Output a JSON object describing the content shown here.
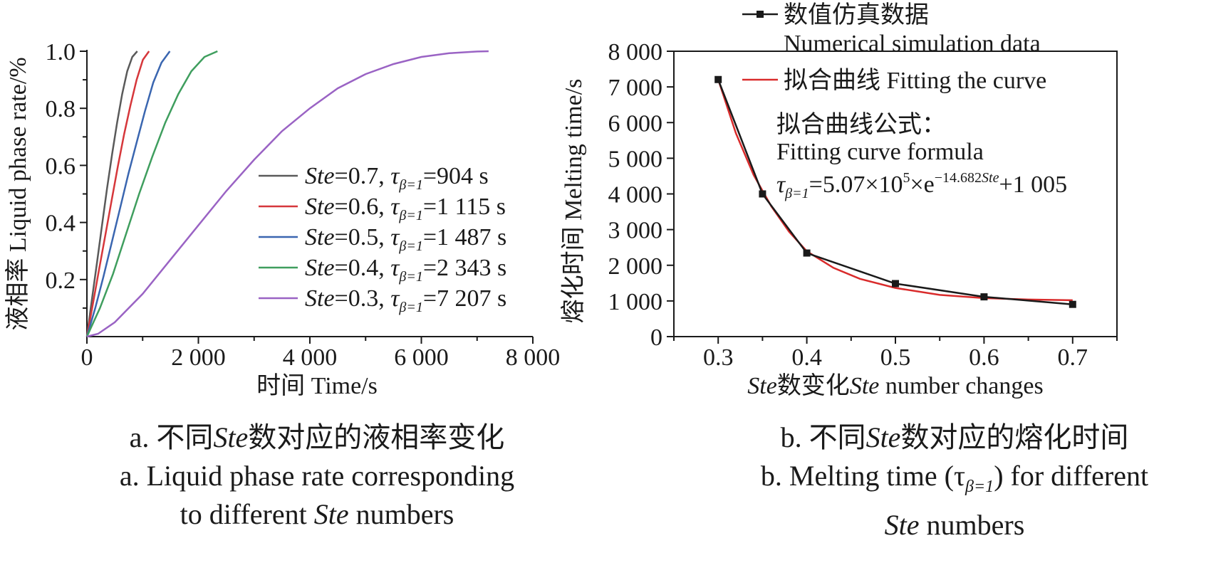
{
  "chart_data": [
    {
      "type": "line",
      "title": "",
      "xlabel": "时间 Time/s",
      "ylabel": "液相率 Liquid phase rate/%",
      "xlim": [
        0,
        8000
      ],
      "ylim": [
        0,
        1.0
      ],
      "x_ticks": [
        0,
        2000,
        4000,
        6000,
        8000
      ],
      "x_tick_labels": [
        "0",
        "2 000",
        "4 000",
        "6 000",
        "8 000"
      ],
      "y_ticks": [
        0.2,
        0.4,
        0.6,
        0.8,
        1.0
      ],
      "y_tick_labels": [
        "0.2",
        "0.4",
        "0.6",
        "0.8",
        "1.0"
      ],
      "legend_position": "center-right",
      "series": [
        {
          "name": "Ste=0.7, τβ=1=904 s",
          "ste": "0.7",
          "tau": "904 s",
          "color": "#5a5a5a",
          "x": [
            0,
            90,
            181,
            271,
            362,
            452,
            542,
            633,
            723,
            814,
            904
          ],
          "y": [
            0,
            0.13,
            0.26,
            0.39,
            0.52,
            0.64,
            0.75,
            0.85,
            0.93,
            0.98,
            1.0
          ]
        },
        {
          "name": "Ste=0.6, τβ=1=1 115 s",
          "ste": "0.6",
          "tau": "1 115 s",
          "color": "#d6373b",
          "x": [
            0,
            112,
            223,
            335,
            446,
            558,
            669,
            781,
            892,
            1004,
            1115
          ],
          "y": [
            0,
            0.12,
            0.24,
            0.36,
            0.48,
            0.6,
            0.71,
            0.81,
            0.9,
            0.97,
            1.0
          ]
        },
        {
          "name": "Ste=0.5, τβ=1=1 487 s",
          "ste": "0.5",
          "tau": "1 487 s",
          "color": "#3a66b0",
          "x": [
            0,
            149,
            297,
            446,
            595,
            744,
            892,
            1041,
            1190,
            1338,
            1487
          ],
          "y": [
            0,
            0.1,
            0.21,
            0.33,
            0.45,
            0.57,
            0.68,
            0.79,
            0.89,
            0.96,
            1.0
          ]
        },
        {
          "name": "Ste=0.4, τβ=1=2 343 s",
          "ste": "0.4",
          "tau": "2 343 s",
          "color": "#3f9e5e",
          "x": [
            0,
            234,
            469,
            703,
            937,
            1172,
            1406,
            1640,
            1874,
            2109,
            2343
          ],
          "y": [
            0,
            0.1,
            0.22,
            0.36,
            0.5,
            0.63,
            0.75,
            0.85,
            0.93,
            0.98,
            1.0
          ]
        },
        {
          "name": "Ste=0.3, τβ=1=7 207 s",
          "ste": "0.3",
          "tau": "7 207 s",
          "color": "#9a63c4",
          "x": [
            0,
            200,
            500,
            1000,
            1500,
            2000,
            2500,
            3000,
            3500,
            4000,
            4500,
            5000,
            5500,
            6000,
            6500,
            7000,
            7207
          ],
          "y": [
            0,
            0.01,
            0.05,
            0.15,
            0.27,
            0.39,
            0.51,
            0.62,
            0.72,
            0.8,
            0.87,
            0.92,
            0.955,
            0.98,
            0.993,
            0.999,
            1.0
          ]
        }
      ]
    },
    {
      "type": "line",
      "title": "",
      "xlabel": "Ste数变化Ste number changes",
      "ylabel": "熔化时间 Melting time/s",
      "xlim": [
        0.25,
        0.75
      ],
      "ylim": [
        0,
        8000
      ],
      "x_ticks": [
        0.3,
        0.4,
        0.5,
        0.6,
        0.7
      ],
      "x_tick_labels": [
        "0.3",
        "0.4",
        "0.5",
        "0.6",
        "0.7"
      ],
      "y_ticks": [
        0,
        1000,
        2000,
        3000,
        4000,
        5000,
        6000,
        7000,
        8000
      ],
      "y_tick_labels": [
        "0",
        "1 000",
        "2 000",
        "3 000",
        "4 000",
        "5 000",
        "6 000",
        "7 000",
        "8 000"
      ],
      "legend_position": "top-right",
      "series": [
        {
          "name": "数值仿真数据 Numerical simulation data",
          "color": "#1a1a1a",
          "marker": "square",
          "x": [
            0.3,
            0.35,
            0.4,
            0.5,
            0.6,
            0.7
          ],
          "y": [
            7207,
            4000,
            2343,
            1487,
            1115,
            904
          ]
        },
        {
          "name": "拟合曲线 Fitting the curve",
          "color": "#d92b2b",
          "formula": "τβ=1=5.07×10^5×e^(−14.682Ste)+1 005",
          "x": [
            0.3,
            0.32,
            0.34,
            0.36,
            0.38,
            0.4,
            0.43,
            0.46,
            0.5,
            0.55,
            0.6,
            0.65,
            0.7
          ],
          "y": [
            7210,
            5700,
            4530,
            3650,
            2940,
            2395,
            1930,
            1620,
            1365,
            1170,
            1080,
            1040,
            1020
          ]
        }
      ]
    }
  ],
  "panel_a": {
    "x_axis_label": "时间 Time/s",
    "y_axis_label": "液相率 Liquid phase rate/%",
    "legend_prefix": "Ste",
    "legend_sub": "β=1",
    "caption_line1_a": "a. 不同",
    "caption_line1_italic": "Ste",
    "caption_line1_b": "数对应的液相率变化",
    "caption_line2": "a. Liquid phase rate corresponding",
    "caption_line3_a": "to different ",
    "caption_line3_italic": "Ste",
    "caption_line3_b": " numbers"
  },
  "panel_b": {
    "y_axis_label": "熔化时间 Melting time/s",
    "x_label_italic_1": "Ste",
    "x_label_mid": "数变化",
    "x_label_italic_2": "Ste",
    "x_label_end": " number changes",
    "legend_sim_cn": "数值仿真数据",
    "legend_sim_en": "Numerical simulation data",
    "legend_fit": "拟合曲线 Fitting the curve",
    "formula_title_cn": "拟合曲线公式：",
    "formula_title_en": "Fitting curve formula",
    "formula_eq_a": "=5.07×10",
    "formula_eq_exp1": "5",
    "formula_eq_b": "×e",
    "formula_eq_exp2": "−14.682",
    "formula_eq_exp2_italic": "Ste",
    "formula_eq_c": "+1 005",
    "caption_line1_a": "b. 不同",
    "caption_line1_italic": "Ste",
    "caption_line1_b": "数对应的熔化时间",
    "caption_line2_a": "b. Melting time (τ",
    "caption_line2_sub": "β=1",
    "caption_line2_b": ") for different",
    "caption_line3_italic": "Ste",
    "caption_line3_b": " numbers"
  }
}
